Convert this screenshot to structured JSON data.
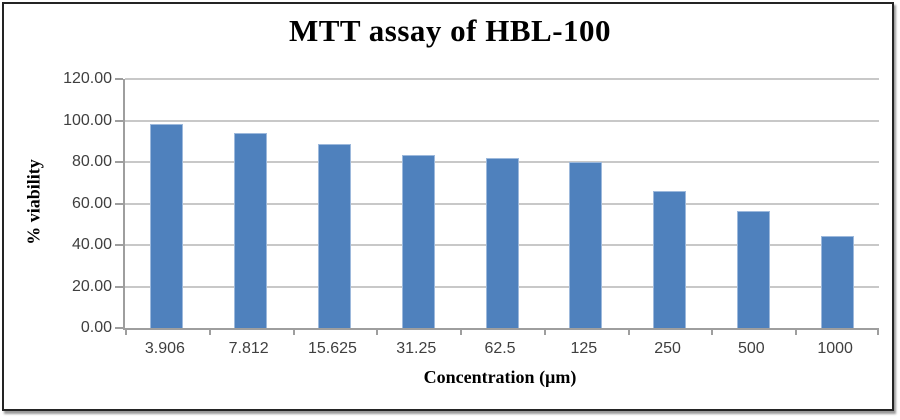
{
  "chart_data": {
    "type": "bar",
    "title": "MTT assay of HBL-100",
    "xlabel": "Concentration (µm)",
    "ylabel": "% viability",
    "categories": [
      "3.906",
      "7.812",
      "15.625",
      "31.25",
      "62.5",
      "125",
      "250",
      "500",
      "1000"
    ],
    "values": [
      98.2,
      93.8,
      88.8,
      83.3,
      82.0,
      79.8,
      66.0,
      56.6,
      44.2
    ],
    "ylim": [
      0,
      120
    ],
    "ytick_step": 20,
    "ytick_labels": [
      "0.00",
      "20.00",
      "40.00",
      "60.00",
      "80.00",
      "100.00",
      "120.00"
    ],
    "grid": true,
    "legend": null
  },
  "colors": {
    "bar_fill": "#4F81BD",
    "bar_edge": "#9DB9DC",
    "gridline": "#C8C8C8",
    "axis_line": "#9E9E9E",
    "tick_text": "#3F3F3F",
    "title_text": "#000000",
    "frame_border": "#242424"
  }
}
